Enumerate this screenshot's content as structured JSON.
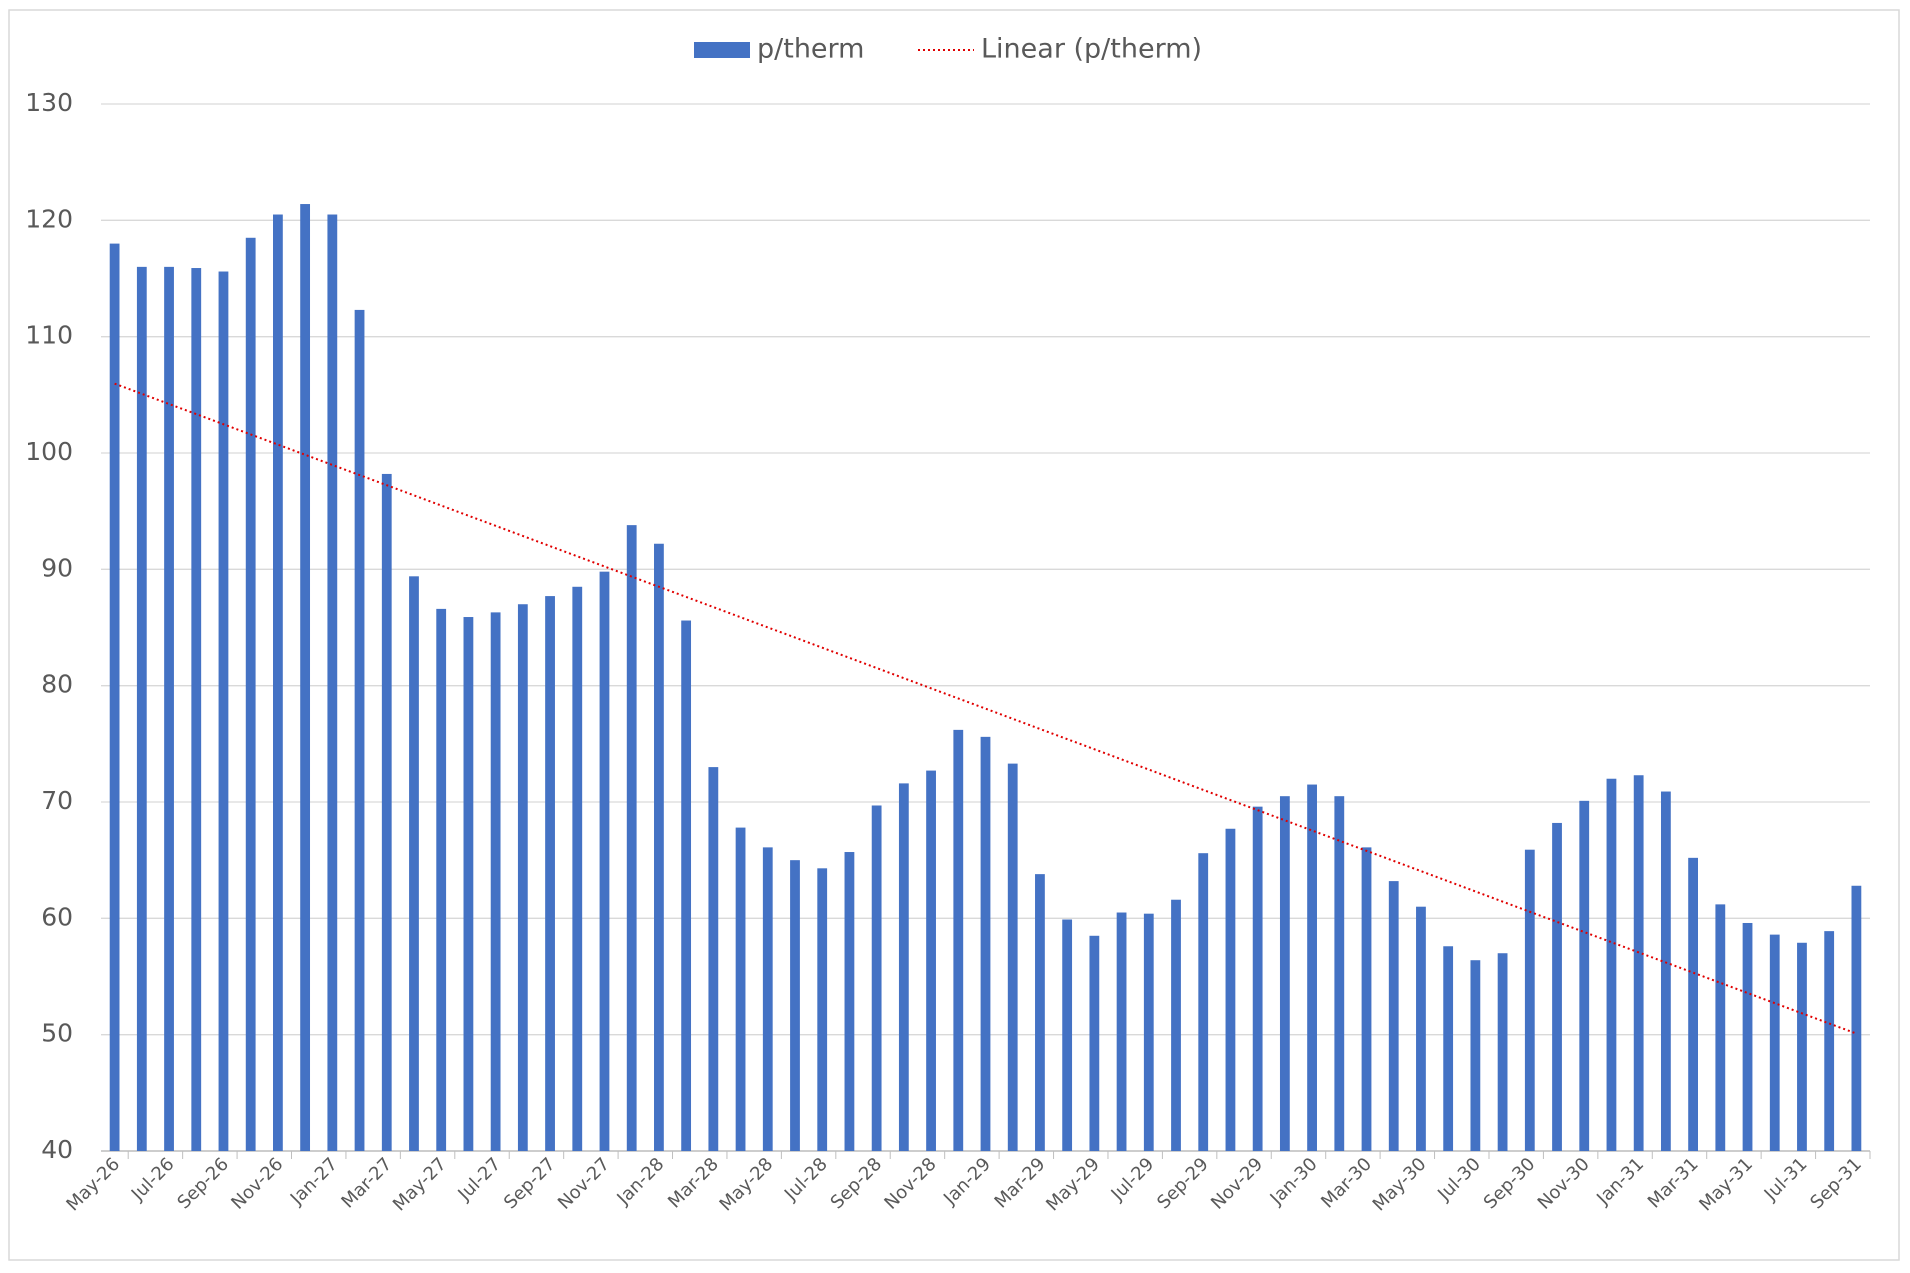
{
  "chart_data": {
    "type": "bar",
    "series": [
      {
        "name": "p/therm",
        "color": "#4472c4",
        "values": [
          118,
          116,
          116,
          115.9,
          115.6,
          118.5,
          120.5,
          121.4,
          120.5,
          112.3,
          98.2,
          89.4,
          86.6,
          85.9,
          86.3,
          87,
          87.7,
          88.5,
          89.8,
          93.8,
          92.2,
          85.6,
          73,
          67.8,
          66.1,
          65,
          64.3,
          65.7,
          69.7,
          71.6,
          72.7,
          76.2,
          75.6,
          73.3,
          63.8,
          59.9,
          58.5,
          60.5,
          60.4,
          61.6,
          65.6,
          67.7,
          69.6,
          70.5,
          71.5,
          70.5,
          66.1,
          63.2,
          61,
          57.6,
          56.4,
          57,
          65.9,
          68.2,
          70.1,
          72,
          72.3,
          70.9,
          65.2,
          61.2,
          59.6,
          58.6,
          57.9,
          58.9,
          62.8
        ]
      }
    ],
    "trendline": {
      "name": "Linear (p/therm)",
      "type": "linear",
      "color": "#e00000"
    },
    "categories": [
      "May-26",
      null,
      "Jul-26",
      null,
      "Sep-26",
      null,
      "Nov-26",
      null,
      "Jan-27",
      null,
      "Mar-27",
      null,
      "May-27",
      null,
      "Jul-27",
      null,
      "Sep-27",
      null,
      "Nov-27",
      null,
      "Jan-28",
      null,
      "Mar-28",
      null,
      "May-28",
      null,
      "Jul-28",
      null,
      "Sep-28",
      null,
      "Nov-28",
      null,
      "Jan-29",
      null,
      "Mar-29",
      null,
      "May-29",
      null,
      "Jul-29",
      null,
      "Sep-29",
      null,
      "Nov-29",
      null,
      "Jan-30",
      null,
      "Mar-30",
      null,
      "May-30",
      null,
      "Jul-30",
      null,
      "Sep-30",
      null,
      "Nov-30",
      null,
      "Jan-31",
      null,
      "Mar-31",
      null,
      "May-31",
      null,
      "Jul-31",
      null,
      "Sep-31"
    ],
    "ylim": [
      40,
      130
    ],
    "yticks": [
      40,
      50,
      60,
      70,
      80,
      90,
      100,
      110,
      120,
      130
    ],
    "grid": true,
    "legend": "top"
  }
}
